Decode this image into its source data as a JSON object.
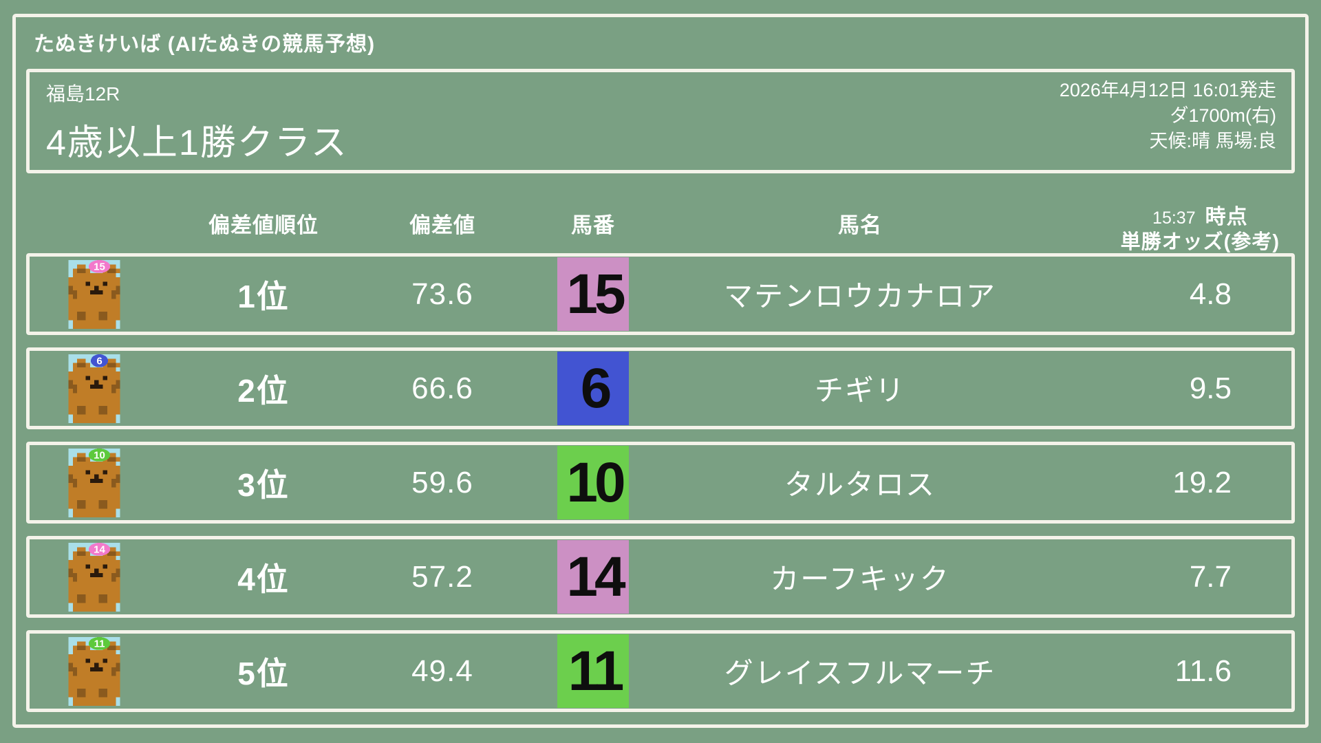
{
  "app": {
    "title": "たぬきけいば (AIたぬきの競馬予想)"
  },
  "race": {
    "track_race": "福島12R",
    "name": "4歳以上1勝クラス",
    "datetime": "2026年4月12日 16:01発走",
    "course": "ダ1700m(右)",
    "conditions": "天候:晴 馬場:良"
  },
  "table": {
    "headers": {
      "rank": "偏差値順位",
      "score": "偏差値",
      "number": "馬番",
      "name": "馬名",
      "odds_time": "15:37",
      "odds_time_suffix": "時点",
      "odds_label": "単勝オッズ(参考)"
    },
    "rows": [
      {
        "rank": "1位",
        "score": "73.6",
        "number": "15",
        "frame_color": "#cc90c4",
        "badge_color": "#f279cb",
        "name": "マテンロウカナロア",
        "odds": "4.8"
      },
      {
        "rank": "2位",
        "score": "66.6",
        "number": "6",
        "frame_color": "#4254d2",
        "badge_color": "#4254d2",
        "name": "チギリ",
        "odds": "9.5"
      },
      {
        "rank": "3位",
        "score": "59.6",
        "number": "10",
        "frame_color": "#6ccf4d",
        "badge_color": "#5dc93c",
        "name": "タルタロス",
        "odds": "19.2"
      },
      {
        "rank": "4位",
        "score": "57.2",
        "number": "14",
        "frame_color": "#cc90c4",
        "badge_color": "#f279cb",
        "name": "カーフキック",
        "odds": "7.7"
      },
      {
        "rank": "5位",
        "score": "49.4",
        "number": "11",
        "frame_color": "#6ccf4d",
        "badge_color": "#5dc93c",
        "name": "グレイスフルマーチ",
        "odds": "11.6"
      }
    ]
  },
  "colors": {
    "background": "#7aa083",
    "border": "#f4f3ea",
    "text": "#ffffff",
    "number_text": "#0e0e0e",
    "avatar_background": "#a9dfe9",
    "avatar_body": "#c07d27",
    "avatar_shadow": "#8a5a1e"
  }
}
